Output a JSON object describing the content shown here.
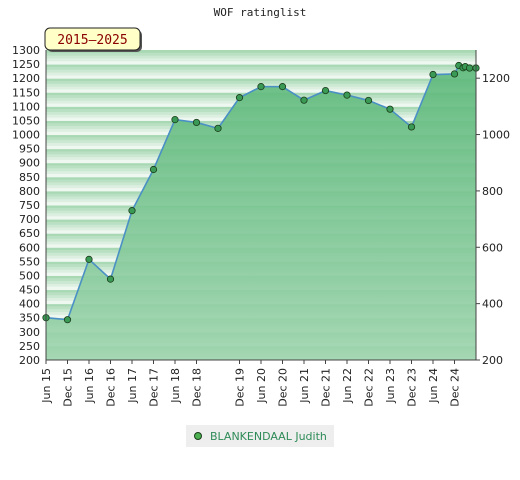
{
  "title": "WOF ratinglist",
  "badge": "2015–2025",
  "colors": {
    "area_top": "#5cb87a",
    "area_bottom": "#9ed4ae",
    "line": "#4a90c4",
    "marker": "#3a9a55",
    "marker_stroke": "#1a3d1a",
    "band_dark": "#a8d8b4",
    "band_light": "#eef7f0",
    "badge_bg": "#ffffc8",
    "legend_text": "#2e8b57"
  },
  "chart_data": {
    "type": "area",
    "title": "WOF ratinglist",
    "xlabel": "",
    "ylabel": "",
    "ylim": [
      200,
      1300
    ],
    "y_ticks_left": [
      200,
      250,
      300,
      350,
      400,
      450,
      500,
      550,
      600,
      650,
      700,
      750,
      800,
      850,
      900,
      950,
      1000,
      1050,
      1100,
      1150,
      1200,
      1250,
      1300
    ],
    "y_ticks_right": [
      200,
      400,
      600,
      800,
      1000,
      1200
    ],
    "x_tick_labels": [
      "Jun 15",
      "Dec 15",
      "Jun 16",
      "Dec 16",
      "Jun 17",
      "Dec 17",
      "Jun 18",
      "Dec 18",
      "Dec 19",
      "Jun 20",
      "Dec 20",
      "Jun 21",
      "Dec 21",
      "Jun 22",
      "Dec 22",
      "Jun 23",
      "Dec 23",
      "Jun 24",
      "Dec 24"
    ],
    "x_tick_positions": [
      0,
      1,
      2,
      3,
      4,
      5,
      6,
      7,
      9,
      10,
      11,
      12,
      13,
      14,
      15,
      16,
      17,
      18,
      19
    ],
    "x_range": [
      0,
      20
    ],
    "legend": "bottom",
    "series": [
      {
        "name": "BLANKENDAAL Judith",
        "points": [
          [
            0,
            350
          ],
          [
            1,
            343
          ],
          [
            2,
            557
          ],
          [
            3,
            487
          ],
          [
            4,
            730
          ],
          [
            5,
            876
          ],
          [
            6,
            1053
          ],
          [
            7,
            1043
          ],
          [
            8,
            1022
          ],
          [
            9,
            1131
          ],
          [
            10,
            1170
          ],
          [
            11,
            1170
          ],
          [
            12,
            1122
          ],
          [
            13,
            1156
          ],
          [
            14,
            1140
          ],
          [
            15,
            1121
          ],
          [
            16,
            1090
          ],
          [
            17,
            1027
          ],
          [
            18,
            1213
          ],
          [
            19,
            1215
          ],
          [
            19.2,
            1245
          ],
          [
            19.4,
            1237
          ],
          [
            19.5,
            1241
          ],
          [
            19.7,
            1236
          ],
          [
            20,
            1236
          ]
        ]
      }
    ]
  }
}
